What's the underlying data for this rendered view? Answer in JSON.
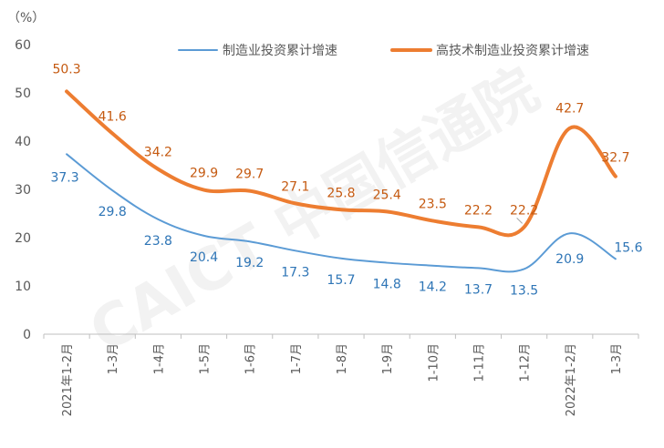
{
  "chart_data": {
    "type": "line",
    "ylabel": "（%）",
    "ylim": [
      0,
      60
    ],
    "yticks": [
      0,
      10,
      20,
      30,
      40,
      50,
      60
    ],
    "categories": [
      "2021年1-2月",
      "1-3月",
      "1-4月",
      "1-5月",
      "1-6月",
      "1-7月",
      "1-8月",
      "1-9月",
      "1-10月",
      "1-11月",
      "1-12月",
      "2022年1-2月",
      "1-3月"
    ],
    "grid": false,
    "legend_position": "top-right",
    "series": [
      {
        "name": "制造业投资累计增速",
        "color": "#5B9BD5",
        "values": [
          37.3,
          29.8,
          23.8,
          20.4,
          19.2,
          17.3,
          15.7,
          14.8,
          14.2,
          13.7,
          13.5,
          20.9,
          15.6
        ]
      },
      {
        "name": "高技术制造业投资累计增速",
        "color": "#ED7D31",
        "values": [
          50.3,
          41.6,
          34.2,
          29.9,
          29.7,
          27.1,
          25.8,
          25.4,
          23.5,
          22.2,
          22.2,
          42.7,
          32.7
        ]
      }
    ],
    "watermark": "CAICT 中国信通院"
  }
}
